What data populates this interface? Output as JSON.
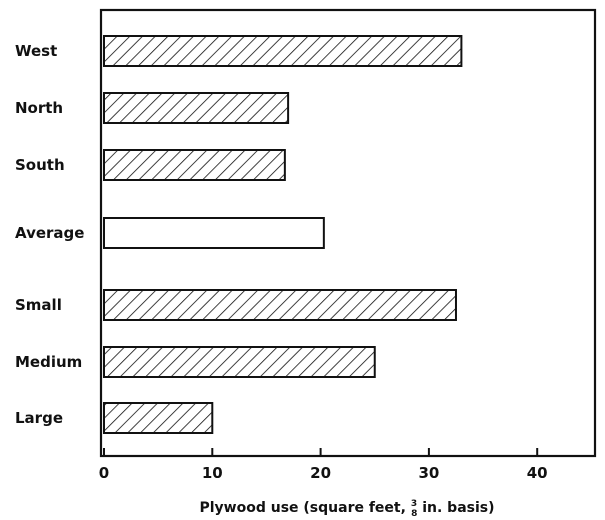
{
  "chart_data": {
    "type": "bar",
    "orientation": "horizontal",
    "categories": [
      "West",
      "North",
      "South",
      "Average",
      "Small",
      "Medium",
      "Large"
    ],
    "values": [
      33,
      17,
      16.7,
      20.3,
      32.5,
      25,
      10
    ],
    "hatched": [
      true,
      true,
      true,
      false,
      true,
      true,
      true
    ],
    "xlabel_parts": {
      "before": "Plywood use (square feet, ",
      "frac_num": "3",
      "frac_den": "8",
      "after": " in. basis)"
    },
    "xlim": [
      0,
      45
    ],
    "xticks": [
      0,
      10,
      20,
      30,
      40
    ],
    "xtick_labels": [
      "0",
      "10",
      "20",
      "30",
      "40"
    ],
    "grid": false,
    "colors": {
      "bar_stroke": "#111111",
      "hatch": "#111111",
      "fill": "#ffffff"
    }
  }
}
